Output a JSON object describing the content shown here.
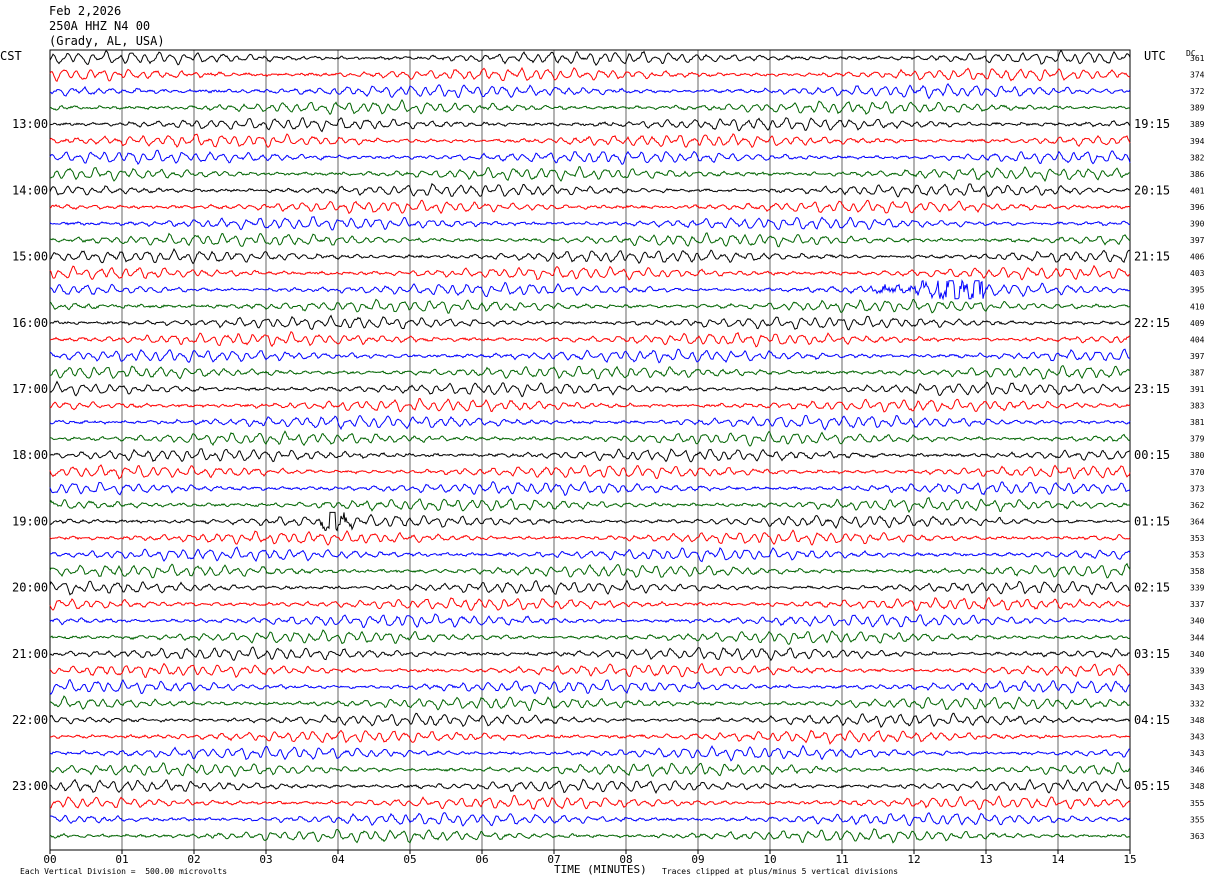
{
  "header": {
    "date": "Feb 2,2026",
    "station": "250A HHZ N4 00",
    "location": "(Grady, AL, USA)"
  },
  "left_zone_label": "CST",
  "right_zone_label": "UTC",
  "dc_label": "DC",
  "footer": {
    "vertical_division": "Each Vertical Division =  500.00 microvolts",
    "axis_title": "TIME (MINUTES)",
    "clip_note": "Traces clipped at plus/minus 5 vertical divisions"
  },
  "colors": [
    "#000000",
    "#ff0000",
    "#0000ff",
    "#006400"
  ],
  "chart_data": {
    "type": "line",
    "title": "Feb 2,2026  250A HHZ N4 00  (Grady, AL, USA)",
    "xlabel": "TIME (MINUTES)",
    "ylabel": "",
    "xlim": [
      0,
      15
    ],
    "x_ticks": [
      "00",
      "01",
      "02",
      "03",
      "04",
      "05",
      "06",
      "07",
      "08",
      "09",
      "10",
      "11",
      "12",
      "13",
      "14",
      "15"
    ],
    "traces_per_hour": 4,
    "left_hour_labels": [
      "13:00",
      "14:00",
      "15:00",
      "16:00",
      "17:00",
      "18:00",
      "19:00",
      "20:00",
      "21:00",
      "22:00",
      "23:00"
    ],
    "right_hour_labels": [
      "19:15",
      "20:15",
      "21:15",
      "22:15",
      "23:15",
      "00:15",
      "01:15",
      "02:15",
      "03:15",
      "04:15",
      "05:15"
    ],
    "dc_offsets": [
      "361",
      "374",
      "372",
      "389",
      "389",
      "394",
      "382",
      "386",
      "401",
      "396",
      "390",
      "397",
      "406",
      "403",
      "395",
      "410",
      "409",
      "404",
      "397",
      "387",
      "391",
      "383",
      "381",
      "379",
      "380",
      "370",
      "373",
      "362",
      "364",
      "353",
      "353",
      "358",
      "339",
      "337",
      "340",
      "344",
      "340",
      "339",
      "343",
      "332",
      "348",
      "343",
      "343",
      "346",
      "348",
      "355",
      "355",
      "363"
    ],
    "events": [
      {
        "trace_index": 14,
        "start_minute": 11.4,
        "end_minute": 13.0,
        "peak_minute": 12.7
      },
      {
        "trace_index": 28,
        "start_minute": 3.7,
        "end_minute": 4.2,
        "peak_minute": 3.95
      }
    ]
  }
}
